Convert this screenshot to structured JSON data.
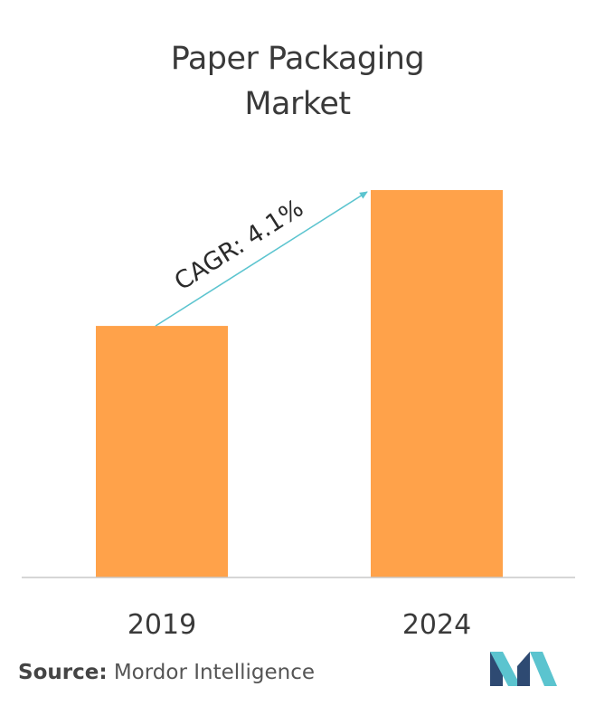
{
  "chart_data": {
    "type": "bar",
    "title_lines": [
      "Paper Packaging",
      "Market"
    ],
    "categories": [
      "2019",
      "2024"
    ],
    "values": [
      1.0,
      1.54
    ],
    "annotation": "CAGR: 4.1%",
    "xlabel": "",
    "ylabel": "",
    "grid": false,
    "colors": {
      "bar": "#FFA24A",
      "axis": "#C8C8C8",
      "arrow": "#5BC4CF"
    }
  },
  "source": {
    "label": "Source:",
    "text": " Mordor Intelligence"
  },
  "logo": {
    "icon": "mordor-intelligence-logo-icon",
    "colors": [
      "#2E4A72",
      "#5BC4CF"
    ]
  }
}
